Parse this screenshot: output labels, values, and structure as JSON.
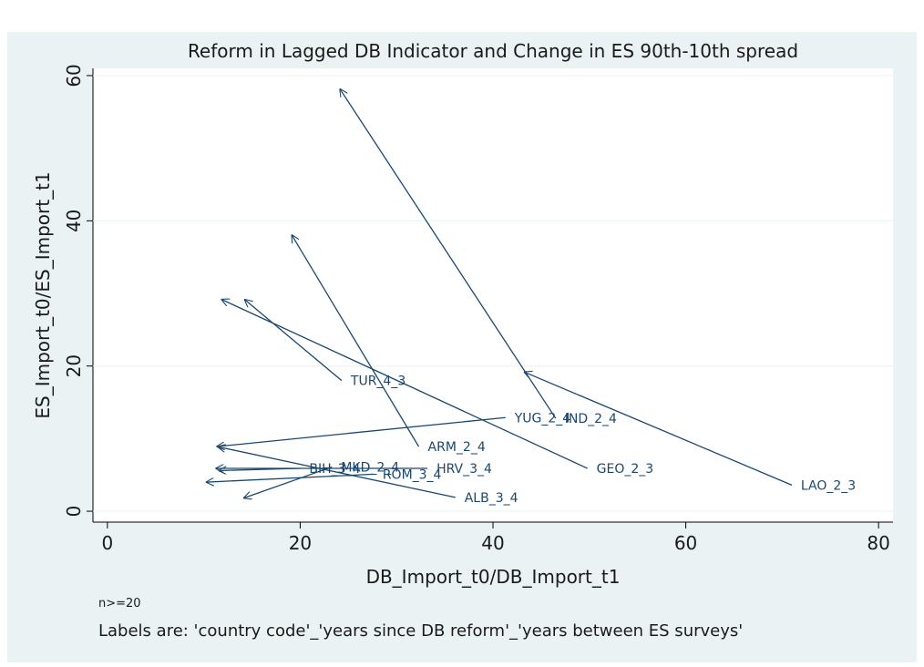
{
  "chart_data": {
    "type": "arrow",
    "title": "Reform in Lagged DB Indicator and Change in ES 90th-10th spread",
    "x_label": "DB_Import_t0/DB_Import_t1",
    "y_label": "ES_Import_t0/ES_Import_t1",
    "notes": [
      "n>=20",
      "Labels are: 'country code'_'years since DB reform'_'years between ES surveys'"
    ],
    "color": "#1a476f",
    "grid": true,
    "xlim": [
      -1.5,
      81.5
    ],
    "ylim": [
      -1.5,
      61
    ],
    "xticks": [
      0,
      20,
      40,
      60,
      80
    ],
    "yticks": [
      0,
      20,
      40,
      60
    ],
    "arrows": [
      {
        "label": "LAO_2_3",
        "x0": 71,
        "y0": 3.6,
        "x1": 43.2,
        "y1": 19.2
      },
      {
        "label": "GEO_2_3",
        "x0": 49.8,
        "y0": 5.9,
        "x1": 11.8,
        "y1": 29.2
      },
      {
        "label": "TUR_4_3",
        "x0": 24.3,
        "y0": 18,
        "x1": 14.2,
        "y1": 29.2
      },
      {
        "label": "ARM_2_4",
        "x0": 32.3,
        "y0": 8.9,
        "x1": 19.1,
        "y1": 38.1
      },
      {
        "label": "YUG_2_4",
        "x0": 41.3,
        "y0": 12.9,
        "x1": 11.3,
        "y1": 8.9
      },
      {
        "label": "IND_2_4",
        "x0": 46.5,
        "y0": 12.8,
        "x1": 24.1,
        "y1": 58.2
      },
      {
        "label": "HRV_3_4",
        "x0": 33.2,
        "y0": 5.9,
        "x1": 11.2,
        "y1": 5.9
      },
      {
        "label": "ALB_3_4",
        "x0": 36.1,
        "y0": 1.9,
        "x1": 11.4,
        "y1": 8.9
      },
      {
        "label": "ROM_3_4",
        "x0": 27.6,
        "y0": 5.1,
        "x1": 10.2,
        "y1": 4.0
      },
      {
        "label": "MKD_2_4",
        "x0": 23.3,
        "y0": 6.1,
        "x1": 14.1,
        "y1": 1.8
      },
      {
        "label": "BIH_3_4",
        "x0": 20.0,
        "y0": 5.9,
        "x1": 11.5,
        "y1": 5.6
      }
    ]
  }
}
